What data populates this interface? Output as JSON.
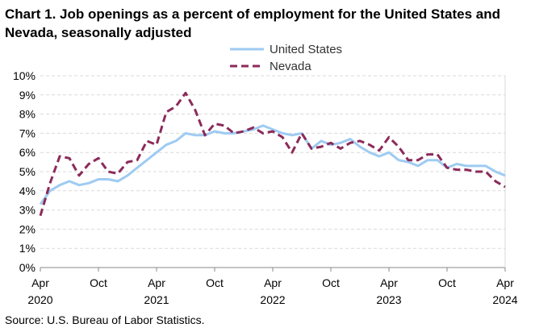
{
  "title": "Chart 1. Job openings as a percent of employment for the United States and Nevada, seasonally adjusted",
  "source": "Source: U.S. Bureau of Labor Statistics.",
  "chart_data": {
    "type": "line",
    "title": "Chart 1. Job openings as a percent of employment for the United States and Nevada, seasonally adjusted",
    "xlabel": "",
    "ylabel": "",
    "ylim": [
      0,
      10
    ],
    "yticks": [
      "0%",
      "1%",
      "2%",
      "3%",
      "4%",
      "5%",
      "6%",
      "7%",
      "8%",
      "9%",
      "10%"
    ],
    "xticks": [
      {
        "month": "Apr",
        "year": "2020"
      },
      {
        "month": "Oct",
        "year": ""
      },
      {
        "month": "Apr",
        "year": "2021"
      },
      {
        "month": "Oct",
        "year": ""
      },
      {
        "month": "Apr",
        "year": "2022"
      },
      {
        "month": "Oct",
        "year": ""
      },
      {
        "month": "Apr",
        "year": "2023"
      },
      {
        "month": "Oct",
        "year": ""
      },
      {
        "month": "Apr",
        "year": "2024"
      }
    ],
    "x": [
      "2020-04",
      "2020-05",
      "2020-06",
      "2020-07",
      "2020-08",
      "2020-09",
      "2020-10",
      "2020-11",
      "2020-12",
      "2021-01",
      "2021-02",
      "2021-03",
      "2021-04",
      "2021-05",
      "2021-06",
      "2021-07",
      "2021-08",
      "2021-09",
      "2021-10",
      "2021-11",
      "2021-12",
      "2022-01",
      "2022-02",
      "2022-03",
      "2022-04",
      "2022-05",
      "2022-06",
      "2022-07",
      "2022-08",
      "2022-09",
      "2022-10",
      "2022-11",
      "2022-12",
      "2023-01",
      "2023-02",
      "2023-03",
      "2023-04",
      "2023-05",
      "2023-06",
      "2023-07",
      "2023-08",
      "2023-09",
      "2023-10",
      "2023-11",
      "2023-12",
      "2024-01",
      "2024-02",
      "2024-03",
      "2024-04"
    ],
    "grid": true,
    "legend": "top",
    "series": [
      {
        "name": "United States",
        "color": "#9ecbf2",
        "dash": "solid",
        "values": [
          3.3,
          4.0,
          4.3,
          4.5,
          4.3,
          4.4,
          4.6,
          4.6,
          4.5,
          4.8,
          5.2,
          5.6,
          6.0,
          6.4,
          6.6,
          7.0,
          6.9,
          6.9,
          7.1,
          7.0,
          7.0,
          7.1,
          7.2,
          7.4,
          7.2,
          7.0,
          6.9,
          7.0,
          6.2,
          6.6,
          6.4,
          6.5,
          6.7,
          6.3,
          6.0,
          5.8,
          6.0,
          5.6,
          5.5,
          5.3,
          5.6,
          5.6,
          5.2,
          5.4,
          5.3,
          5.3,
          5.3,
          5.0,
          4.8
        ]
      },
      {
        "name": "Nevada",
        "color": "#8b2b5a",
        "dash": "dashed",
        "values": [
          2.7,
          4.4,
          5.8,
          5.7,
          4.8,
          5.4,
          5.7,
          5.0,
          4.9,
          5.5,
          5.6,
          6.6,
          6.4,
          8.1,
          8.4,
          9.1,
          8.2,
          6.9,
          7.5,
          7.4,
          7.0,
          7.1,
          7.3,
          7.0,
          7.1,
          6.8,
          6.0,
          7.0,
          6.2,
          6.3,
          6.5,
          6.2,
          6.5,
          6.6,
          6.4,
          6.1,
          6.8,
          6.3,
          5.6,
          5.6,
          5.9,
          5.9,
          5.2,
          5.1,
          5.1,
          5.0,
          5.0,
          4.5,
          4.2
        ]
      }
    ]
  }
}
